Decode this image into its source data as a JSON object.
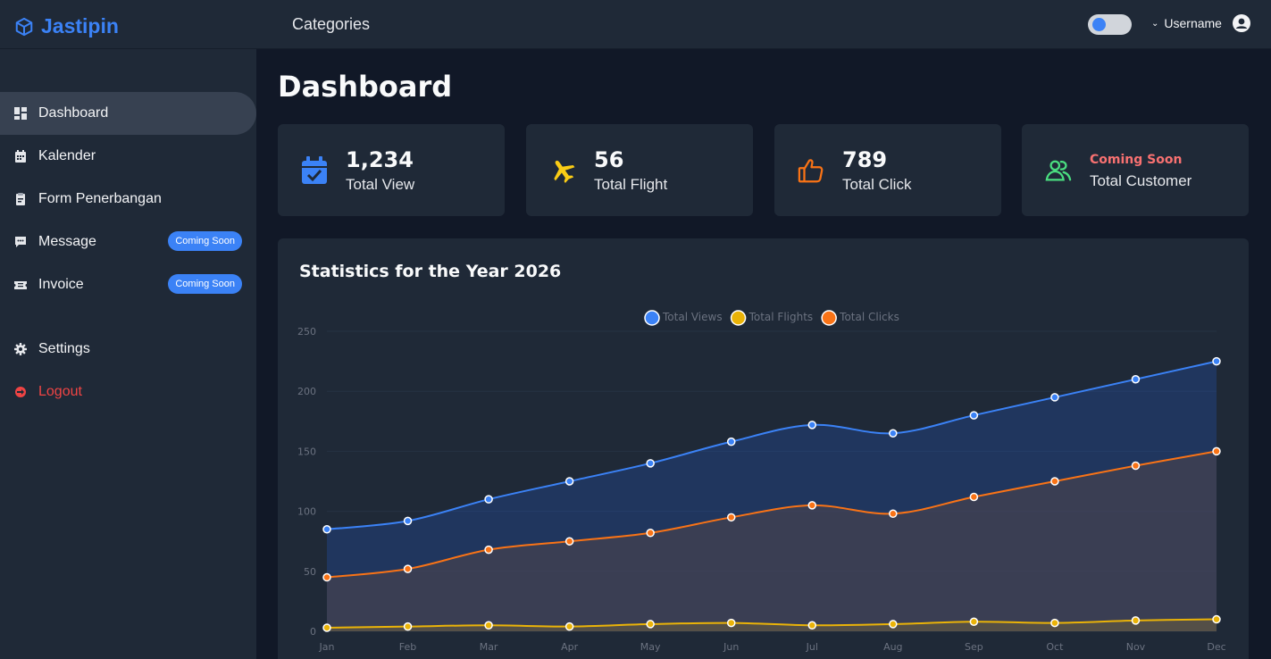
{
  "app": {
    "brand": "Jastipin"
  },
  "topbar": {
    "nav_label": "Categories",
    "user_label": "Username"
  },
  "sidebar": {
    "items": [
      {
        "label": "Dashboard",
        "icon": "grid-icon",
        "active": true
      },
      {
        "label": "Kalender",
        "icon": "calendar-icon"
      },
      {
        "label": "Form Penerbangan",
        "icon": "clipboard-icon"
      },
      {
        "label": "Message",
        "icon": "message-icon",
        "badge": "Coming Soon"
      },
      {
        "label": "Invoice",
        "icon": "ticket-icon",
        "badge": "Coming Soon"
      },
      {
        "label": "Settings",
        "icon": "gear-icon"
      },
      {
        "label": "Logout",
        "icon": "logout-icon"
      }
    ]
  },
  "main": {
    "title": "Dashboard",
    "cards": [
      {
        "value": "1,234",
        "label": "Total View",
        "icon": "calendar-check-icon",
        "color": "#3b82f6"
      },
      {
        "value": "56",
        "label": "Total Flight",
        "icon": "plane-icon",
        "color": "#facc15"
      },
      {
        "value": "789",
        "label": "Total Click",
        "icon": "thumbs-up-icon",
        "color": "#f97316"
      },
      {
        "status": "Coming Soon",
        "label": "Total Customer",
        "icon": "users-icon",
        "color": "#4ade80"
      }
    ],
    "chart_title": "Statistics for the Year 2026"
  },
  "chart_data": {
    "type": "line",
    "title": "Statistics for the Year 2026",
    "categories": [
      "Jan",
      "Feb",
      "Mar",
      "Apr",
      "May",
      "Jun",
      "Jul",
      "Aug",
      "Sep",
      "Oct",
      "Nov",
      "Dec"
    ],
    "ylim": [
      0,
      250
    ],
    "yticks": [
      0,
      50,
      100,
      150,
      200,
      250
    ],
    "legend_position": "top-center",
    "series": [
      {
        "name": "Total Views",
        "color": "#3b82f6",
        "values": [
          85,
          92,
          110,
          125,
          140,
          158,
          172,
          165,
          180,
          195,
          210,
          225
        ]
      },
      {
        "name": "Total Flights",
        "color": "#eab308",
        "values": [
          3,
          4,
          5,
          4,
          6,
          7,
          5,
          6,
          8,
          7,
          9,
          10
        ]
      },
      {
        "name": "Total Clicks",
        "color": "#f97316",
        "values": [
          45,
          52,
          68,
          75,
          82,
          95,
          105,
          98,
          112,
          125,
          138,
          150
        ]
      }
    ]
  }
}
